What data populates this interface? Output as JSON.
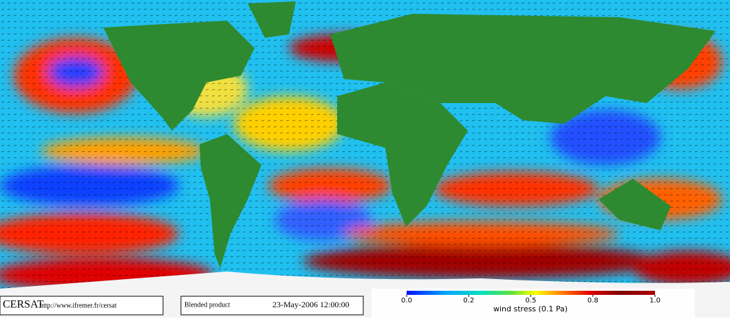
{
  "logo": "CERSAT",
  "url": "http://www.ifremer.fr/cersat",
  "product": "Blended product",
  "date": "23-May-2006 12:00:00",
  "colorbar": {
    "label": "wind stress (0.1 Pa)",
    "lim": [
      0,
      1
    ],
    "ticks": [
      {
        "value": 0,
        "label": "0.0"
      },
      {
        "value": 0.25,
        "label": "0.2"
      },
      {
        "value": 0.5,
        "label": "0.5"
      },
      {
        "value": 0.75,
        "label": "0.8"
      },
      {
        "value": 1,
        "label": "1.0"
      }
    ]
  }
}
